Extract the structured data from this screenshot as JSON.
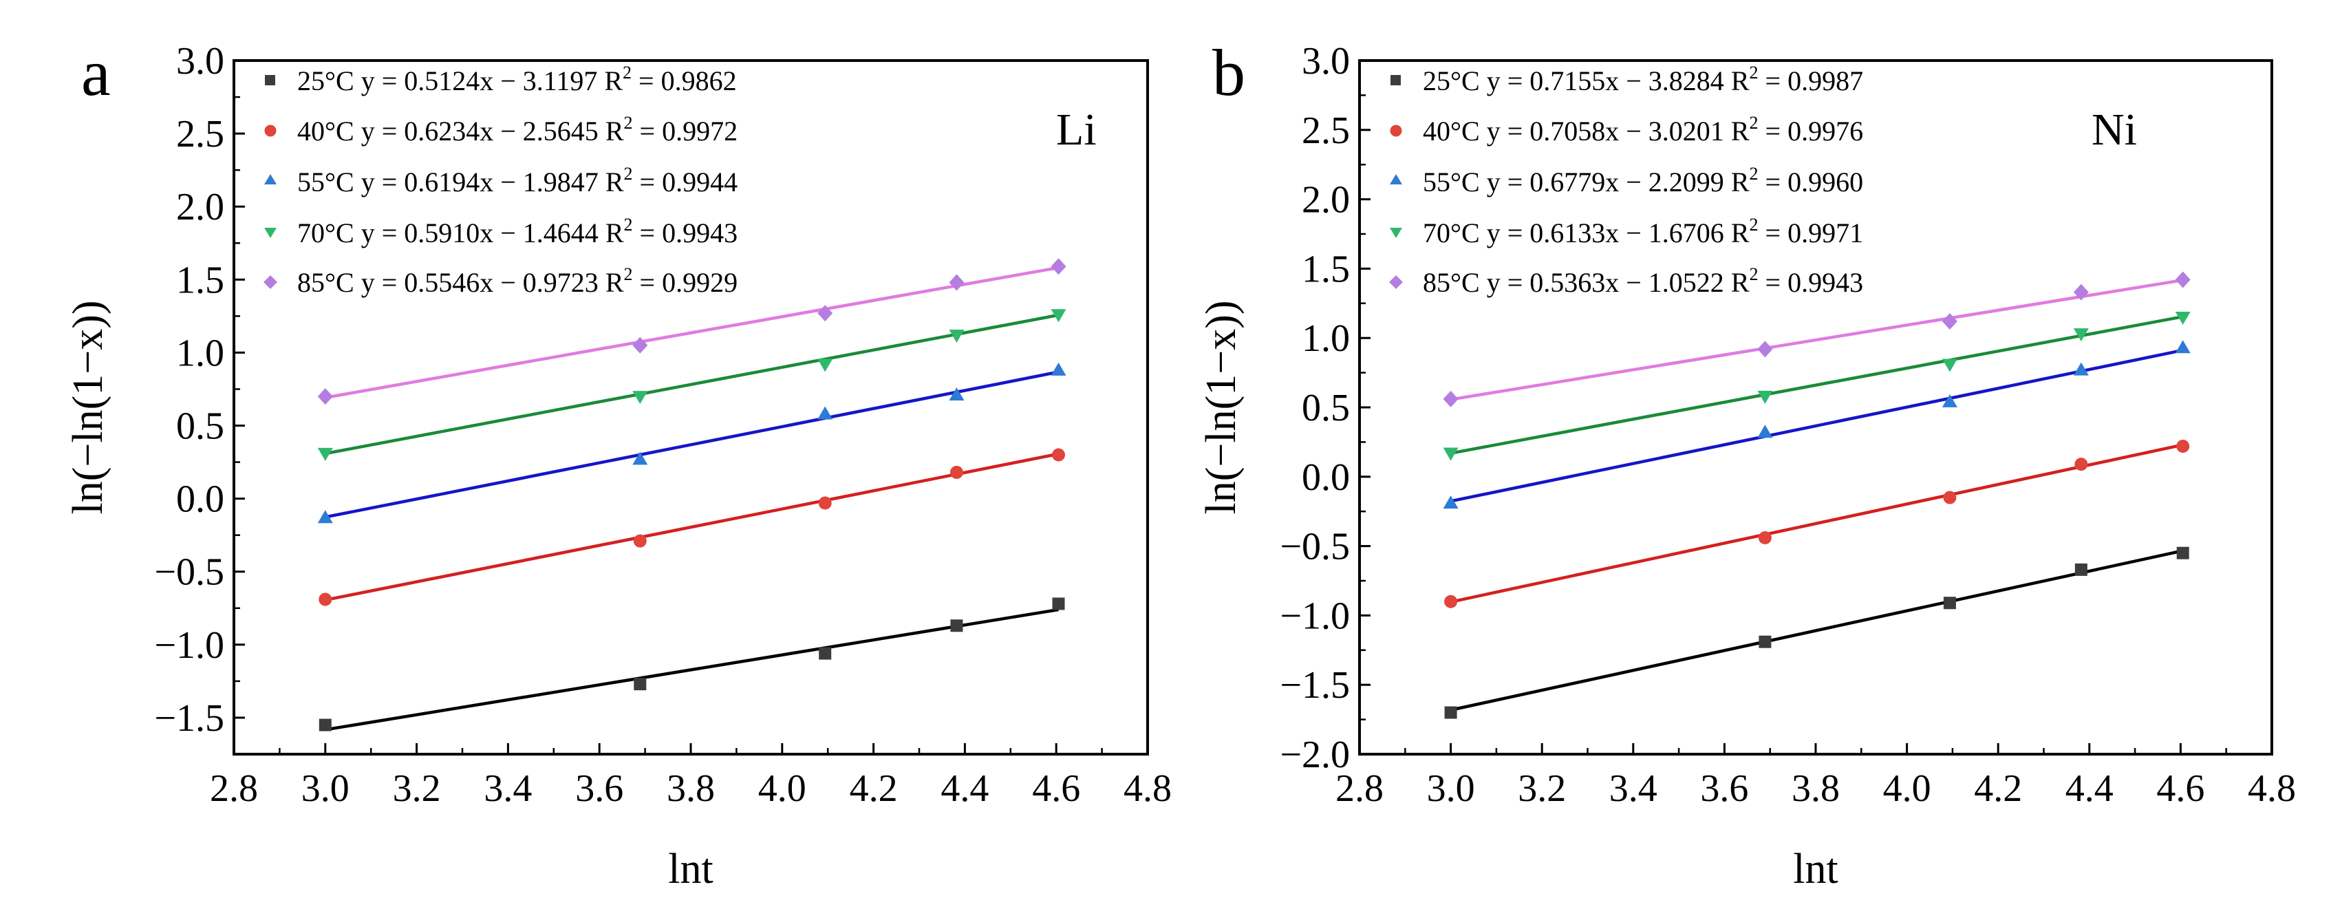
{
  "figure": {
    "panels": [
      {
        "label": "a",
        "element": "Li",
        "xlabel": "lnt",
        "ylabel": "ln(−ln(1−x))",
        "xlim": [
          2.8,
          4.8
        ],
        "ylim": [
          -1.75,
          3.0
        ],
        "xticks": [
          "2.8",
          "3.0",
          "3.2",
          "3.4",
          "3.6",
          "3.8",
          "4.0",
          "4.2",
          "4.4",
          "4.6",
          "4.8"
        ],
        "yticks": [
          "-1.5",
          "-1.0",
          "-0.5",
          "0.0",
          "0.5",
          "1.0",
          "1.5",
          "2.0",
          "2.5",
          "3.0"
        ]
      },
      {
        "label": "b",
        "element": "Ni",
        "xlabel": "lnt",
        "ylabel": "ln(−ln(1−x))",
        "xlim": [
          2.8,
          4.8
        ],
        "ylim": [
          -2.0,
          3.0
        ],
        "xticks": [
          "2.8",
          "3.0",
          "3.2",
          "3.4",
          "3.6",
          "3.8",
          "4.0",
          "4.2",
          "4.4",
          "4.6",
          "4.8"
        ],
        "yticks": [
          "-2.0",
          "-1.5",
          "-1.0",
          "-0.5",
          "0.0",
          "0.5",
          "1.0",
          "1.5",
          "2.0",
          "2.5",
          "3.0"
        ]
      }
    ]
  },
  "chart_data": [
    {
      "type": "scatter",
      "title": "a",
      "annotation": "Li",
      "xlabel": "lnt",
      "ylabel": "ln(−ln(1−x))",
      "xlim": [
        2.8,
        4.8
      ],
      "ylim": [
        -1.75,
        3.0
      ],
      "x": [
        3.0,
        3.689,
        4.094,
        4.382,
        4.605
      ],
      "series": [
        {
          "name": "25°C",
          "temp": "25°C",
          "marker": "square",
          "color": "#3c3c3c",
          "line_color": "#000000",
          "equation": "y = 0.5124x − 3.1197",
          "r2": "0.9862",
          "slope": 0.5124,
          "intercept": -3.1197,
          "values": [
            -1.55,
            -1.27,
            -1.06,
            -0.87,
            -0.72
          ]
        },
        {
          "name": "40°C",
          "temp": "40°C",
          "marker": "circle",
          "color": "#e0443a",
          "line_color": "#d42020",
          "equation": "y = 0.6234x − 2.5645",
          "r2": "0.9972",
          "slope": 0.6234,
          "intercept": -2.5645,
          "values": [
            -0.69,
            -0.29,
            -0.03,
            0.18,
            0.3
          ]
        },
        {
          "name": "55°C",
          "temp": "55°C",
          "marker": "triangle-up",
          "color": "#2e7bd6",
          "line_color": "#1515c8",
          "equation": "y = 0.6194x − 1.9847",
          "r2": "0.9944",
          "slope": 0.6194,
          "intercept": -1.9847,
          "values": [
            -0.13,
            0.27,
            0.58,
            0.71,
            0.88
          ]
        },
        {
          "name": "70°C",
          "temp": "70°C",
          "marker": "triangle-down",
          "color": "#2fb86b",
          "line_color": "#1a8a3a",
          "equation": "y = 0.5910x − 1.4644",
          "r2": "0.9943",
          "slope": 0.591,
          "intercept": -1.4644,
          "values": [
            0.31,
            0.7,
            0.92,
            1.12,
            1.26
          ]
        },
        {
          "name": "85°C",
          "temp": "85°C",
          "marker": "diamond",
          "color": "#b57de0",
          "line_color": "#e07be0",
          "equation": "y = 0.5546x − 0.9723",
          "r2": "0.9929",
          "slope": 0.5546,
          "intercept": -0.9723,
          "values": [
            0.7,
            1.05,
            1.27,
            1.48,
            1.59
          ]
        }
      ]
    },
    {
      "type": "scatter",
      "title": "b",
      "annotation": "Ni",
      "xlabel": "lnt",
      "ylabel": "ln(−ln(1−x))",
      "xlim": [
        2.8,
        4.8
      ],
      "ylim": [
        -2.0,
        3.0
      ],
      "x": [
        3.0,
        3.689,
        4.094,
        4.382,
        4.605
      ],
      "series": [
        {
          "name": "25°C",
          "temp": "25°C",
          "marker": "square",
          "color": "#3c3c3c",
          "line_color": "#000000",
          "equation": "y = 0.7155x − 3.8284",
          "r2": "0.9987",
          "slope": 0.7155,
          "intercept": -3.8284,
          "values": [
            -1.7,
            -1.19,
            -0.91,
            -0.67,
            -0.55
          ]
        },
        {
          "name": "40°C",
          "temp": "40°C",
          "marker": "circle",
          "color": "#e0443a",
          "line_color": "#d42020",
          "equation": "y = 0.7058x − 3.0201",
          "r2": "0.9976",
          "slope": 0.7058,
          "intercept": -3.0201,
          "values": [
            -0.9,
            -0.44,
            -0.15,
            0.09,
            0.22
          ]
        },
        {
          "name": "55°C",
          "temp": "55°C",
          "marker": "triangle-up",
          "color": "#2e7bd6",
          "line_color": "#1515c8",
          "equation": "y = 0.6779x − 2.2099",
          "r2": "0.9960",
          "slope": 0.6779,
          "intercept": -2.2099,
          "values": [
            -0.19,
            0.32,
            0.54,
            0.77,
            0.93
          ]
        },
        {
          "name": "70°C",
          "temp": "70°C",
          "marker": "triangle-down",
          "color": "#2fb86b",
          "line_color": "#1a8a3a",
          "equation": "y = 0.6133x − 1.6706",
          "r2": "0.9971",
          "slope": 0.6133,
          "intercept": -1.6706,
          "values": [
            0.17,
            0.58,
            0.81,
            1.03,
            1.15
          ]
        },
        {
          "name": "85°C",
          "temp": "85°C",
          "marker": "diamond",
          "color": "#b57de0",
          "line_color": "#e07be0",
          "equation": "y = 0.5363x − 1.0522",
          "r2": "0.9943",
          "slope": 0.5363,
          "intercept": -1.0522,
          "values": [
            0.56,
            0.92,
            1.12,
            1.33,
            1.42
          ]
        }
      ]
    }
  ]
}
